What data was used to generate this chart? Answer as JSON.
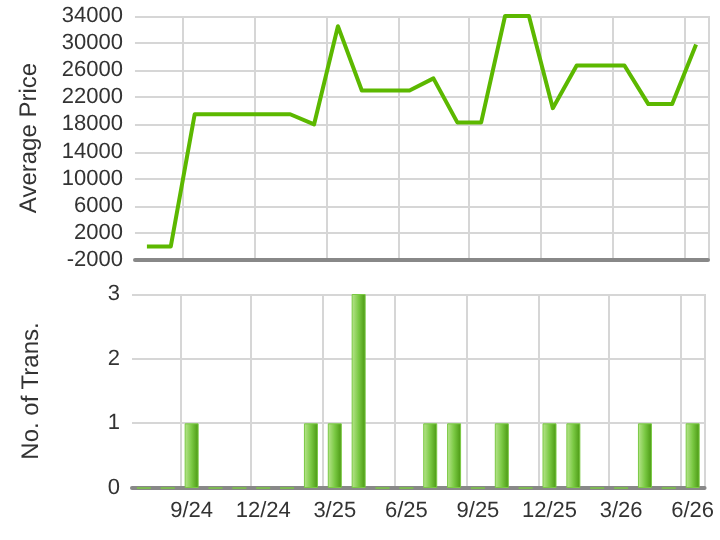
{
  "chart_data": [
    {
      "type": "line",
      "ylabel": "Average Price",
      "categories": [
        null,
        null,
        null,
        null,
        null,
        null,
        null,
        null,
        null,
        null,
        null,
        null,
        null,
        null,
        null,
        null,
        null,
        null,
        null,
        null,
        null,
        null,
        null,
        null
      ],
      "series": [
        {
          "color": "#5cb800",
          "values": [
            0,
            0,
            19500,
            19500,
            19500,
            19500,
            19500,
            18000,
            32500,
            23000,
            23000,
            23000,
            24800,
            18300,
            18300,
            34000,
            34000,
            20400,
            26700,
            26700,
            26700,
            21000,
            21000,
            29800
          ]
        }
      ],
      "ylim": [
        -2000,
        34000
      ],
      "yticks": [
        -2000,
        2000,
        6000,
        10000,
        14000,
        18000,
        22000,
        26000,
        30000,
        34000
      ],
      "grid": true,
      "marker": "none",
      "tick_labels": "y"
    },
    {
      "type": "bar",
      "ylabel": "No. of Trans.",
      "categories": [
        null,
        null,
        "9/24",
        null,
        null,
        "12/24",
        null,
        null,
        "3/25",
        null,
        null,
        "6/25",
        null,
        null,
        "9/25",
        null,
        null,
        "12/25",
        null,
        null,
        "3/26",
        null,
        null,
        "6/26"
      ],
      "series": [
        {
          "color": "#7ac943",
          "values": [
            0,
            0,
            1,
            0,
            0,
            0,
            0,
            1,
            1,
            3,
            0,
            0,
            1,
            1,
            0,
            1,
            0,
            1,
            1,
            0,
            0,
            1,
            0,
            1
          ]
        }
      ],
      "ylim": [
        0,
        3
      ],
      "yticks": [
        0,
        1,
        2,
        3
      ],
      "grid": true
    }
  ]
}
